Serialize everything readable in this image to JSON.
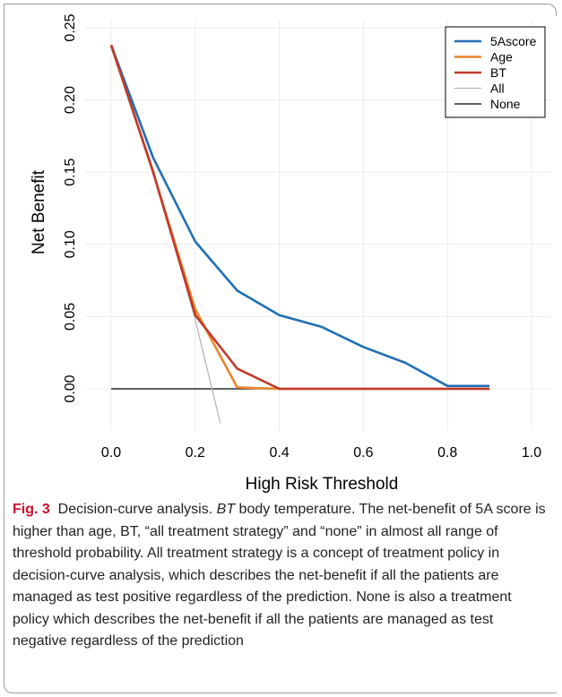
{
  "chart_data": {
    "type": "line",
    "xlabel": "High Risk Threshold",
    "ylabel": "Net Benefit",
    "xlim": [
      0.0,
      1.0
    ],
    "ylim": [
      -0.02,
      0.25
    ],
    "x_ticks": [
      "0.0",
      "0.2",
      "0.4",
      "0.6",
      "0.8",
      "1.0"
    ],
    "y_ticks": [
      "0.00",
      "0.05",
      "0.10",
      "0.15",
      "0.20",
      "0.25"
    ],
    "grid": true,
    "legend_position": "top-right",
    "series": [
      {
        "name": "5Ascore",
        "color": "#1f6fb4",
        "x": [
          0.0,
          0.1,
          0.2,
          0.3,
          0.4,
          0.5,
          0.6,
          0.7,
          0.8,
          0.9
        ],
        "y": [
          0.238,
          0.16,
          0.102,
          0.068,
          0.051,
          0.043,
          0.029,
          0.018,
          0.002,
          0.002
        ]
      },
      {
        "name": "Age",
        "color": "#e8862a",
        "x": [
          0.0,
          0.1,
          0.2,
          0.3,
          0.4,
          0.5,
          0.6,
          0.7,
          0.8,
          0.9
        ],
        "y": [
          0.238,
          0.15,
          0.055,
          0.001,
          0.0,
          0.0,
          0.0,
          0.0,
          0.0,
          0.0
        ]
      },
      {
        "name": "BT",
        "color": "#c0392b",
        "x": [
          0.0,
          0.1,
          0.2,
          0.3,
          0.4,
          0.5,
          0.6,
          0.7,
          0.8,
          0.9
        ],
        "y": [
          0.238,
          0.15,
          0.051,
          0.014,
          0.0,
          0.0,
          0.0,
          0.0,
          0.0,
          0.0
        ]
      },
      {
        "name": "All",
        "color": "#b3b3b3",
        "x": [
          0.0,
          0.1,
          0.2,
          0.26
        ],
        "y": [
          0.238,
          0.152,
          0.048,
          -0.024
        ]
      },
      {
        "name": "None",
        "color": "#000000",
        "x": [
          0.0,
          0.9
        ],
        "y": [
          0.0,
          0.0
        ]
      }
    ]
  },
  "caption": {
    "fig_label": "Fig. 3",
    "title": "Decision-curve analysis.",
    "abbr": "BT",
    "body": "body temperature. The net-benefit of 5A score is higher than age, BT, “all treatment strategy” and “none” in almost all range of threshold probability. All treatment strategy is a concept of treatment policy in decision-curve analysis, which describes the net-benefit if all the patients are managed as test positive regardless of the prediction. None is also a treatment policy which describes the net-benefit if all the patients are managed as test negative regardless of the prediction"
  }
}
